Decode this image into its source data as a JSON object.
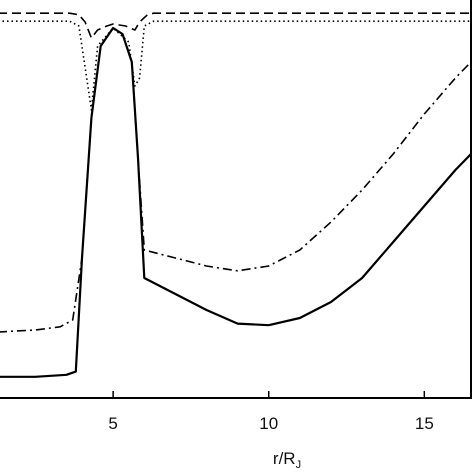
{
  "chart_data": {
    "type": "line",
    "title": "",
    "xlabel": "r/R",
    "xlabel_subscript": "J",
    "ylabel": "",
    "xlim": [
      1.3,
      16.5
    ],
    "ylim": [
      0,
      1
    ],
    "grid": false,
    "x_ticks": [
      5,
      10,
      15
    ],
    "x_tick_labels": [
      "5",
      "10",
      "15"
    ],
    "series": [
      {
        "style": "solid",
        "color": "#000000",
        "points": [
          [
            1.3,
            0.053
          ],
          [
            2.5,
            0.053
          ],
          [
            3.5,
            0.058
          ],
          [
            3.8,
            0.066
          ],
          [
            4.0,
            0.35
          ],
          [
            4.3,
            0.7
          ],
          [
            4.6,
            0.88
          ],
          [
            5.0,
            0.925
          ],
          [
            5.3,
            0.91
          ],
          [
            5.6,
            0.84
          ],
          [
            5.8,
            0.6
          ],
          [
            6.0,
            0.3
          ],
          [
            7.0,
            0.26
          ],
          [
            8.0,
            0.22
          ],
          [
            9.0,
            0.186
          ],
          [
            10.0,
            0.182
          ],
          [
            11.0,
            0.2
          ],
          [
            12.0,
            0.24
          ],
          [
            13.0,
            0.3
          ],
          [
            14.0,
            0.39
          ],
          [
            15.0,
            0.48
          ],
          [
            16.0,
            0.57
          ],
          [
            16.5,
            0.61
          ]
        ]
      },
      {
        "style": "dashdot",
        "color": "#000000",
        "points": [
          [
            1.3,
            0.165
          ],
          [
            2.5,
            0.17
          ],
          [
            3.3,
            0.178
          ],
          [
            3.7,
            0.195
          ],
          [
            4.0,
            0.35
          ],
          [
            4.3,
            0.7
          ],
          [
            4.6,
            0.88
          ],
          [
            5.0,
            0.925
          ],
          [
            5.3,
            0.91
          ],
          [
            5.6,
            0.84
          ],
          [
            5.8,
            0.6
          ],
          [
            6.0,
            0.37
          ],
          [
            7.0,
            0.35
          ],
          [
            8.0,
            0.33
          ],
          [
            9.0,
            0.318
          ],
          [
            10.0,
            0.33
          ],
          [
            11.0,
            0.37
          ],
          [
            12.0,
            0.44
          ],
          [
            13.0,
            0.52
          ],
          [
            14.0,
            0.61
          ],
          [
            15.0,
            0.71
          ],
          [
            16.0,
            0.8
          ],
          [
            16.5,
            0.84
          ]
        ]
      },
      {
        "style": "dashed",
        "color": "#000000",
        "points": [
          [
            1.3,
            0.962
          ],
          [
            3.6,
            0.962
          ],
          [
            3.9,
            0.958
          ],
          [
            4.1,
            0.94
          ],
          [
            4.3,
            0.9
          ],
          [
            4.5,
            0.92
          ],
          [
            4.8,
            0.93
          ],
          [
            5.0,
            0.935
          ],
          [
            5.4,
            0.93
          ],
          [
            5.7,
            0.92
          ],
          [
            5.85,
            0.94
          ],
          [
            6.1,
            0.958
          ],
          [
            6.3,
            0.962
          ],
          [
            16.5,
            0.962
          ]
        ]
      },
      {
        "style": "dotted",
        "color": "#000000",
        "points": [
          [
            1.3,
            0.942
          ],
          [
            3.6,
            0.942
          ],
          [
            3.9,
            0.93
          ],
          [
            4.15,
            0.8
          ],
          [
            4.3,
            0.72
          ],
          [
            4.5,
            0.88
          ],
          [
            5.0,
            0.925
          ],
          [
            5.5,
            0.89
          ],
          [
            5.7,
            0.78
          ],
          [
            5.85,
            0.8
          ],
          [
            6.0,
            0.93
          ],
          [
            6.3,
            0.942
          ],
          [
            16.5,
            0.942
          ]
        ]
      }
    ]
  }
}
